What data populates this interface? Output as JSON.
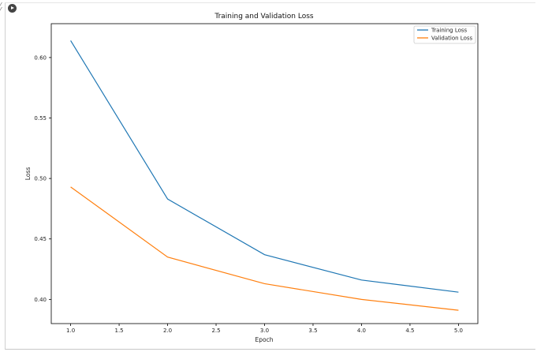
{
  "chart_data": {
    "type": "line",
    "title": "Training and Validation Loss",
    "xlabel": "Epoch",
    "ylabel": "Loss",
    "x": [
      1,
      2,
      3,
      4,
      5
    ],
    "xlim": [
      0.8,
      5.2
    ],
    "ylim": [
      0.38,
      0.628
    ],
    "xticks": [
      1.0,
      1.5,
      2.0,
      2.5,
      3.0,
      3.5,
      4.0,
      4.5,
      5.0
    ],
    "xtick_labels": [
      "1.0",
      "1.5",
      "2.0",
      "2.5",
      "3.0",
      "3.5",
      "4.0",
      "4.5",
      "5.0"
    ],
    "yticks": [
      0.4,
      0.45,
      0.5,
      0.55,
      0.6
    ],
    "ytick_labels": [
      "0.40",
      "0.45",
      "0.50",
      "0.55",
      "0.60"
    ],
    "grid": false,
    "legend_position": "top-right",
    "series": [
      {
        "name": "Training Loss",
        "color": "#1f77b4",
        "values": [
          0.614,
          0.483,
          0.437,
          0.416,
          0.406
        ]
      },
      {
        "name": "Validation Loss",
        "color": "#ff7f0e",
        "values": [
          0.493,
          0.435,
          0.413,
          0.4,
          0.391
        ]
      }
    ]
  },
  "cell": {
    "run_icon": "play-circle-icon",
    "gutter_icon": "collapse-icon"
  }
}
